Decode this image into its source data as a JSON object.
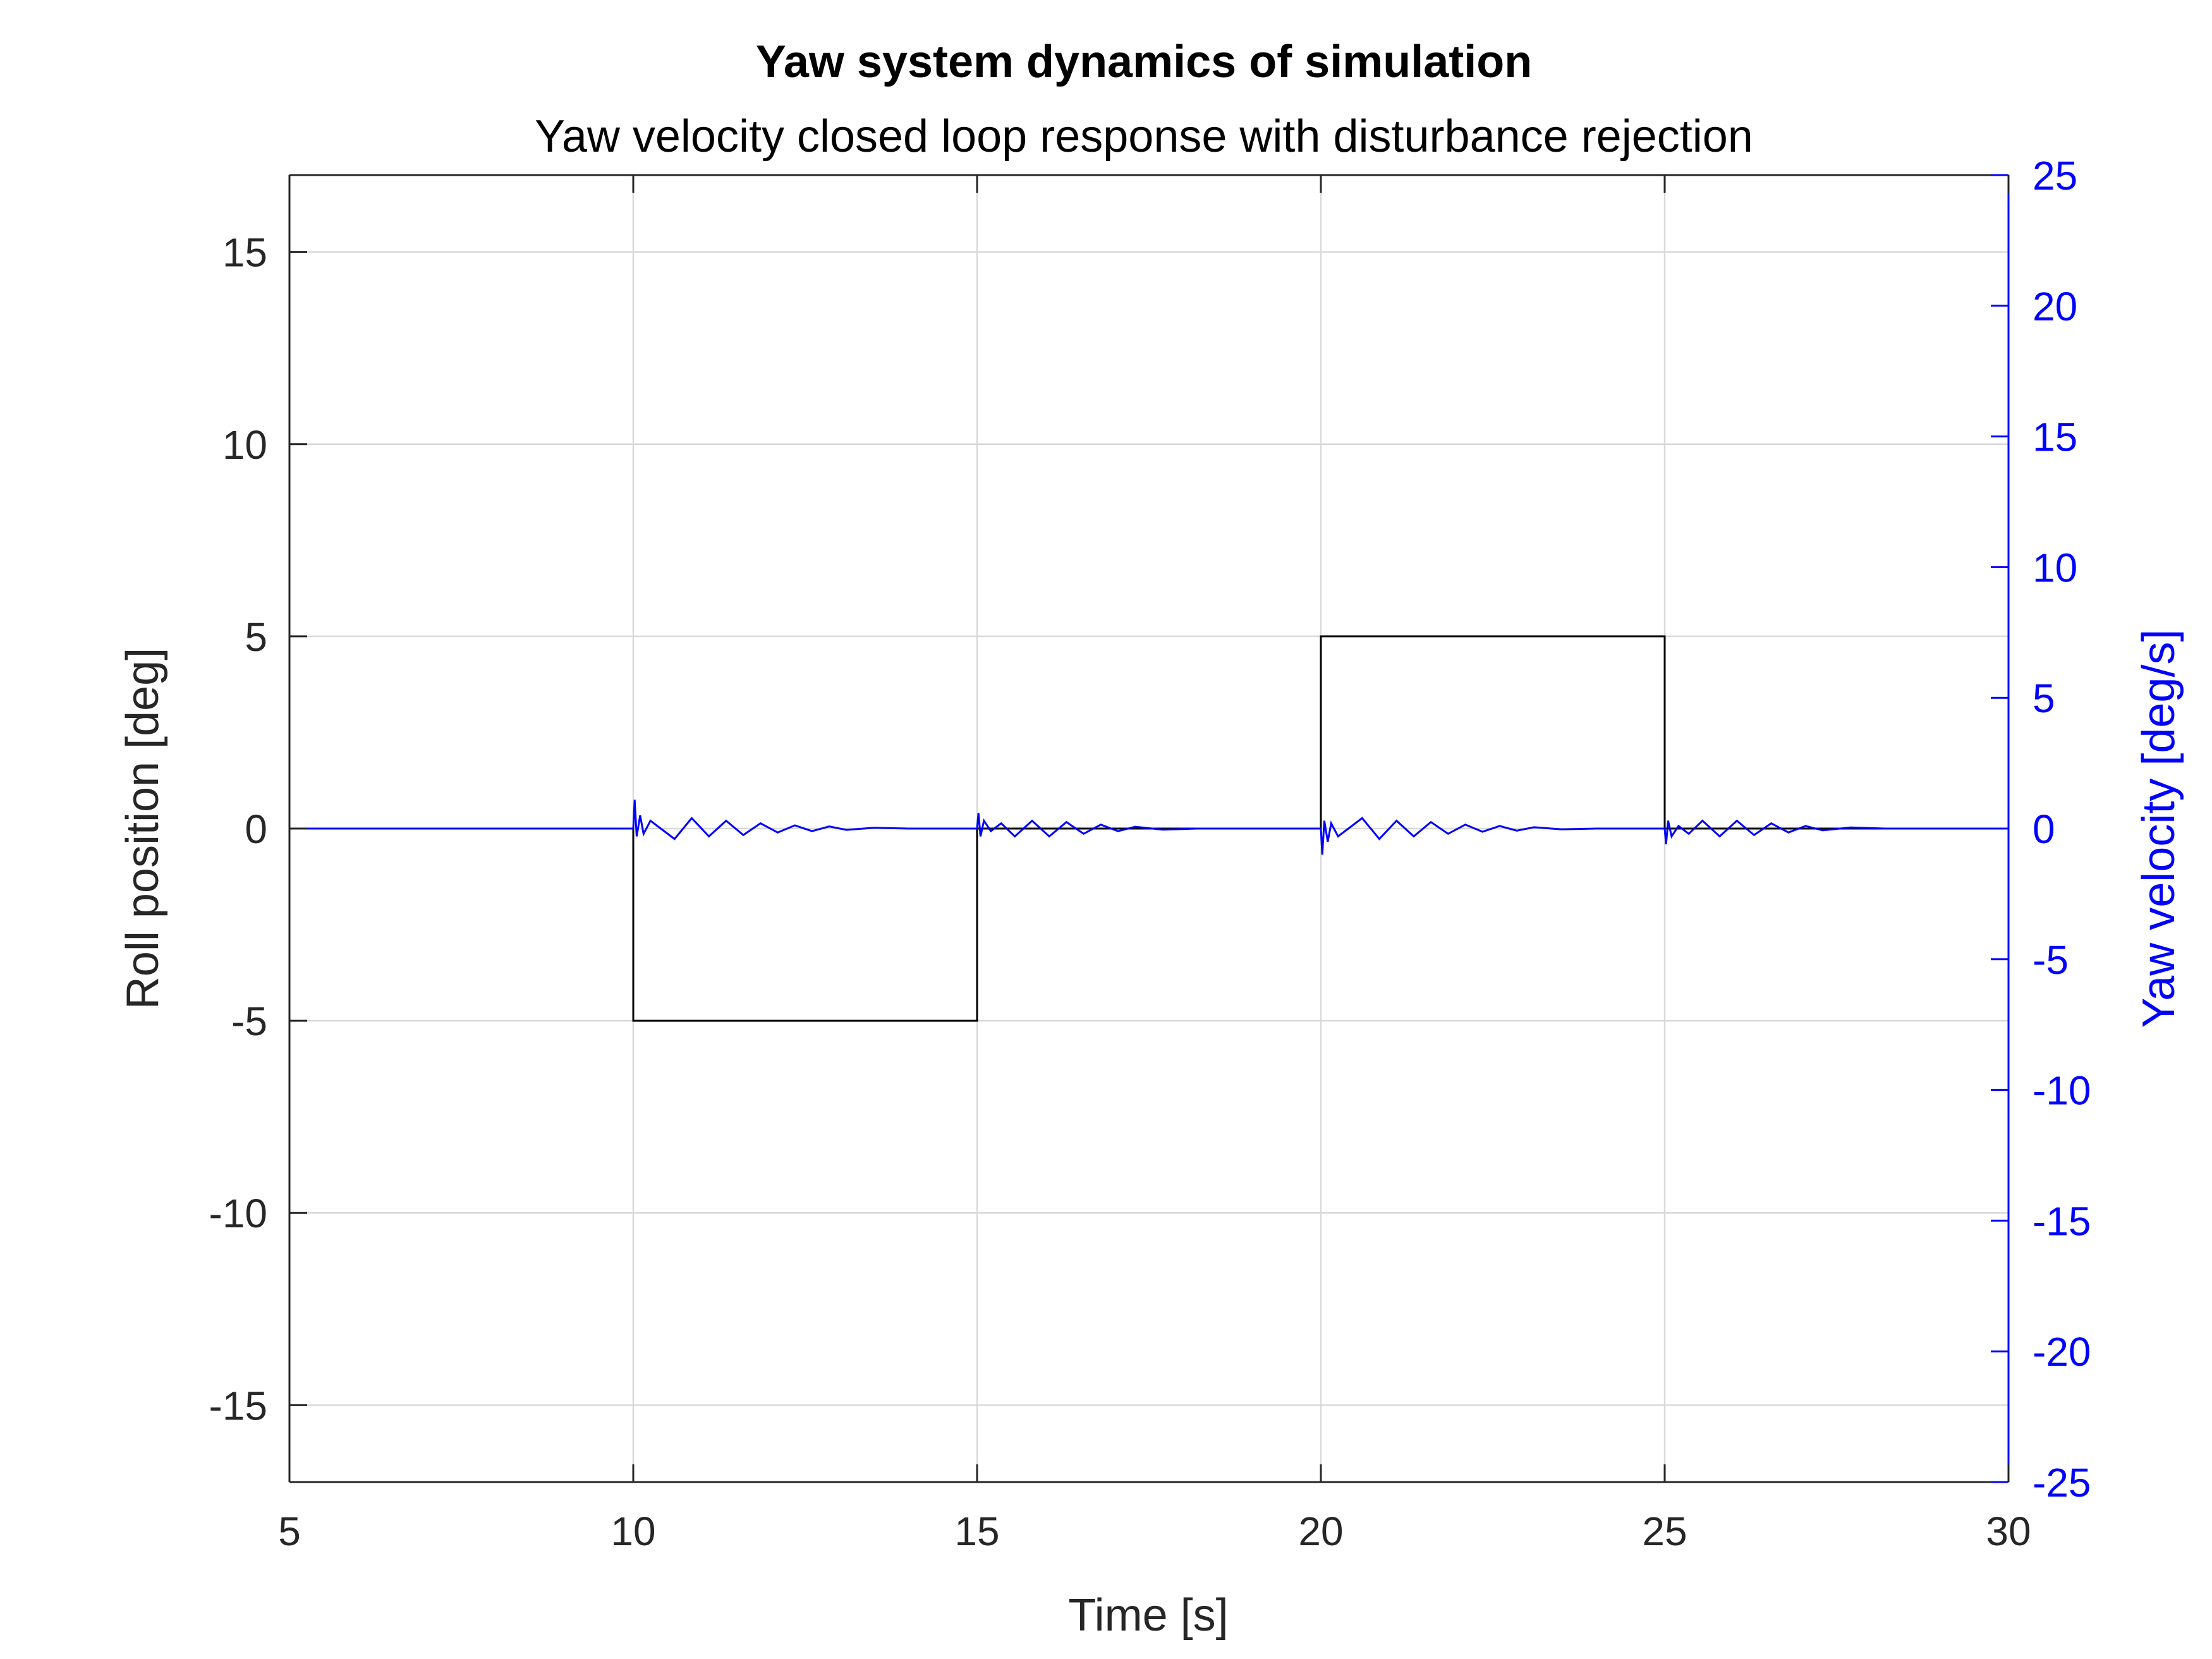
{
  "chart_data": {
    "type": "line",
    "title": "Yaw system dynamics of simulation",
    "subtitle": "Yaw velocity closed loop response with disturbance rejection",
    "xlabel": "Time [s]",
    "ylabel_left": "Roll position [deg]",
    "ylabel_right": "Yaw velocity [deg/s]",
    "xlim": [
      5,
      30
    ],
    "ylim_left": [
      -17,
      17
    ],
    "ylim_right": [
      -25,
      25
    ],
    "xticks": [
      "5",
      "10",
      "15",
      "20",
      "25",
      "30"
    ],
    "yticks_left": [
      "-15",
      "-10",
      "-5",
      "0",
      "5",
      "10",
      "15"
    ],
    "yticks_right": [
      "-25",
      "-20",
      "-15",
      "-10",
      "-5",
      "0",
      "5",
      "10",
      "15",
      "20",
      "25"
    ],
    "grid": true,
    "colors": {
      "left_axis": "#262626",
      "right_axis": "#0000ff",
      "roll_series": "#000000",
      "yaw_series": "#0000ff",
      "grid": "#d9d9d9"
    },
    "series": [
      {
        "axis": "left",
        "x": [
          5,
          10,
          10,
          15,
          15,
          20,
          20,
          25,
          25,
          30
        ],
        "y": [
          0,
          0,
          -5,
          -5,
          0,
          0,
          5,
          5,
          0,
          0
        ]
      },
      {
        "axis": "right",
        "x": [
          5,
          10,
          10.02,
          10.05,
          10.1,
          10.15,
          10.25,
          10.4,
          10.6,
          10.85,
          11.1,
          11.35,
          11.6,
          11.85,
          12.1,
          12.35,
          12.6,
          12.85,
          13.1,
          13.5,
          14,
          15,
          15.02,
          15.05,
          15.1,
          15.2,
          15.35,
          15.55,
          15.8,
          16.05,
          16.3,
          16.55,
          16.8,
          17.05,
          17.3,
          17.7,
          18.2,
          20,
          20.02,
          20.05,
          20.1,
          20.15,
          20.25,
          20.4,
          20.6,
          20.85,
          21.1,
          21.35,
          21.6,
          21.85,
          22.1,
          22.35,
          22.6,
          22.85,
          23.1,
          23.5,
          24,
          25,
          25.02,
          25.05,
          25.1,
          25.2,
          25.35,
          25.55,
          25.8,
          26.05,
          26.3,
          26.55,
          26.8,
          27.05,
          27.3,
          27.7,
          28.2,
          30
        ],
        "y": [
          0,
          0,
          1.1,
          -0.3,
          0.5,
          -0.2,
          0.3,
          0,
          -0.4,
          0.4,
          -0.3,
          0.3,
          -0.25,
          0.2,
          -0.15,
          0.12,
          -0.1,
          0.08,
          -0.05,
          0.03,
          0,
          0,
          0.6,
          -0.3,
          0.3,
          -0.1,
          0.2,
          -0.3,
          0.3,
          -0.3,
          0.25,
          -0.2,
          0.15,
          -0.1,
          0.07,
          -0.04,
          0,
          0,
          -1,
          0.3,
          -0.5,
          0.2,
          -0.3,
          0,
          0.4,
          -0.4,
          0.3,
          -0.3,
          0.25,
          -0.2,
          0.15,
          -0.12,
          0.1,
          -0.08,
          0.05,
          -0.03,
          0,
          0,
          -0.6,
          0.3,
          -0.3,
          0.1,
          -0.2,
          0.3,
          -0.3,
          0.3,
          -0.25,
          0.2,
          -0.15,
          0.1,
          -0.07,
          0.04,
          0,
          0
        ]
      }
    ]
  }
}
